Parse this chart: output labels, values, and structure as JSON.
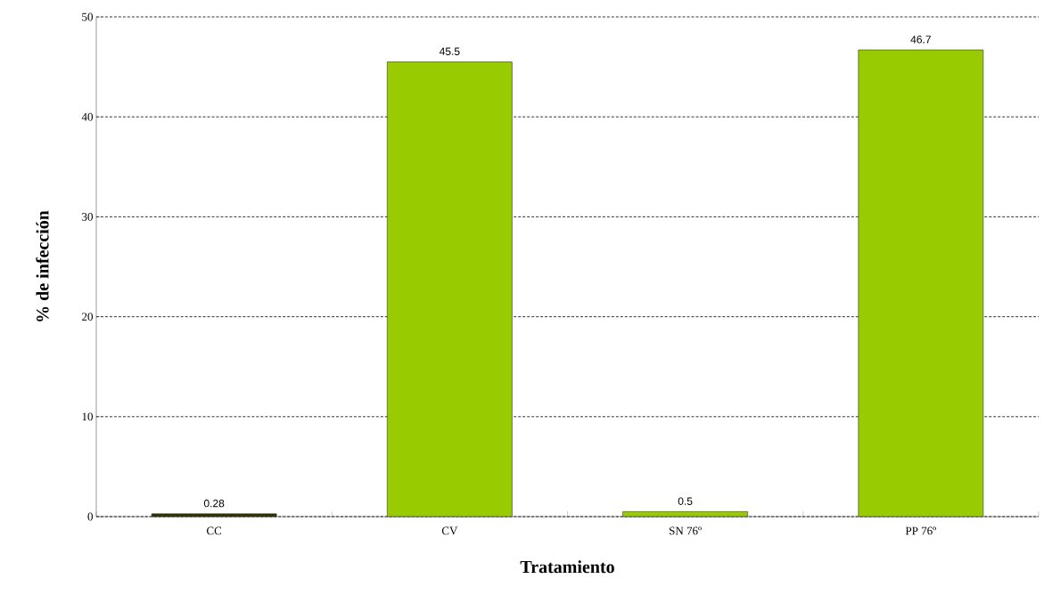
{
  "chart_data": {
    "type": "bar",
    "xlabel": "Tratamiento",
    "ylabel": "% de infección",
    "categories": [
      "CC",
      "CV",
      "SN 76º",
      "PP 76º"
    ],
    "values": [
      0.28,
      45.5,
      0.5,
      46.7
    ],
    "colors": [
      "#333300",
      "#99cc00",
      "#99cc00",
      "#99cc00"
    ],
    "ylim": [
      0,
      50
    ],
    "yticks": [
      0,
      10,
      20,
      30,
      40,
      50
    ],
    "grid": "y",
    "data_labels": true
  }
}
